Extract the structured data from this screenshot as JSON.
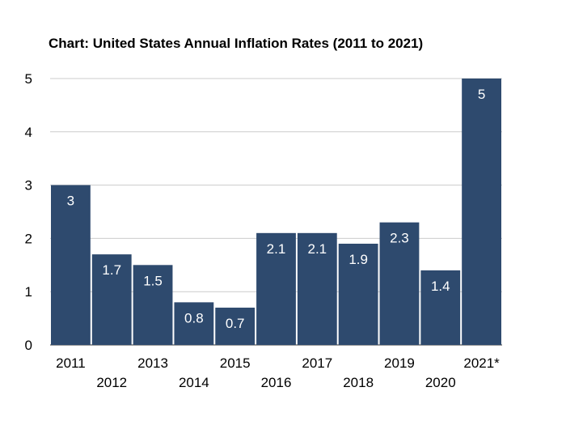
{
  "chart_data": {
    "type": "bar",
    "title": "Chart: United States Annual Inflation Rates (2011 to 2021)",
    "xlabel": "",
    "ylabel": "",
    "categories": [
      "2011",
      "2012",
      "2013",
      "2014",
      "2015",
      "2016",
      "2017",
      "2018",
      "2019",
      "2020",
      "2021*"
    ],
    "values": [
      3,
      1.7,
      1.5,
      0.8,
      0.7,
      2.1,
      2.1,
      1.9,
      2.3,
      1.4,
      5
    ],
    "data_labels": [
      "3",
      "1.7",
      "1.5",
      "0.8",
      "0.7",
      "2.1",
      "2.1",
      "1.9",
      "2.3",
      "1.4",
      "5"
    ],
    "ylim": [
      0,
      5
    ],
    "yticks": [
      "0",
      "1",
      "2",
      "3",
      "4",
      "5"
    ],
    "grid": true,
    "legend": "none",
    "colors": {
      "bar": "#2e4a6e",
      "grid": "#cccccc",
      "axis": "#333333",
      "label": "#ffffff"
    }
  }
}
